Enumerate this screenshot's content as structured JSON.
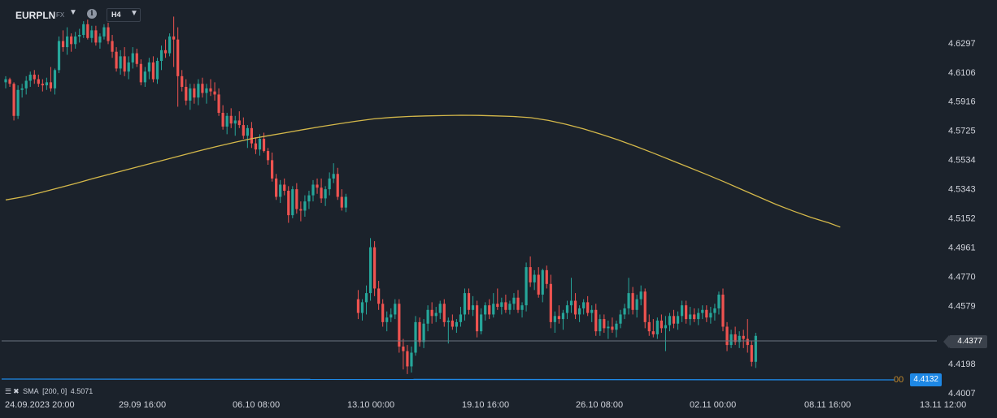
{
  "toolbar": {
    "symbol": "EURPLN",
    "market": "FX",
    "timeframe": "H4",
    "info_icon": "info-icon",
    "dropdown_icon": "chevron-down-icon"
  },
  "colors": {
    "background": "#1b222b",
    "up": "#26a69a",
    "down": "#ef5350",
    "sma": "#d4b84a",
    "current_line": "#6b7480",
    "sma_level_line": "#1e88e5",
    "axis_text": "#d1d4dc"
  },
  "legend": {
    "sma_label": "SMA",
    "sma_params": "[200, 0]",
    "sma_value": "4.5071"
  },
  "tags": {
    "last_price": "4.4377",
    "sma_level": "4.4132",
    "sma_prefix": "00"
  },
  "chart_data": {
    "type": "candlestick",
    "symbol": "EURPLN",
    "timeframe": "H4",
    "y_axis": {
      "ticks": [
        "4.6297",
        "4.6106",
        "4.5916",
        "4.5725",
        "4.5534",
        "4.5343",
        "4.5152",
        "4.4961",
        "4.4770",
        "4.4579",
        "4.4377",
        "4.4198",
        "4.4007"
      ],
      "range": [
        4.3995,
        4.651
      ]
    },
    "x_axis": {
      "ticks": [
        "24.09.2023 20:00",
        "29.09 16:00",
        "06.10 08:00",
        "13.10 00:00",
        "19.10 16:00",
        "26.10 08:00",
        "02.11 00:00",
        "08.11 16:00",
        "13.11 12:00"
      ]
    },
    "last_price": 4.4377,
    "sma_period": 200,
    "sma_value": 4.5071,
    "ohlc": [
      [
        4.604,
        4.608,
        4.6,
        4.606
      ],
      [
        4.606,
        4.607,
        4.601,
        4.603
      ],
      [
        4.603,
        4.604,
        4.579,
        4.582
      ],
      [
        4.582,
        4.602,
        4.58,
        4.599
      ],
      [
        4.599,
        4.603,
        4.594,
        4.6
      ],
      [
        4.6,
        4.608,
        4.596,
        4.605
      ],
      [
        4.605,
        4.611,
        4.601,
        4.609
      ],
      [
        4.609,
        4.612,
        4.603,
        4.606
      ],
      [
        4.606,
        4.609,
        4.601,
        4.603
      ],
      [
        4.603,
        4.606,
        4.598,
        4.602
      ],
      [
        4.602,
        4.607,
        4.599,
        4.604
      ],
      [
        4.604,
        4.614,
        4.598,
        4.6
      ],
      [
        4.6,
        4.613,
        4.596,
        4.612
      ],
      [
        4.612,
        4.634,
        4.61,
        4.631
      ],
      [
        4.631,
        4.638,
        4.624,
        4.627
      ],
      [
        4.627,
        4.64,
        4.622,
        4.634
      ],
      [
        4.634,
        4.636,
        4.624,
        4.629
      ],
      [
        4.629,
        4.637,
        4.626,
        4.634
      ],
      [
        4.634,
        4.639,
        4.63,
        4.635
      ],
      [
        4.635,
        4.644,
        4.633,
        4.642
      ],
      [
        4.642,
        4.645,
        4.632,
        4.633
      ],
      [
        4.633,
        4.641,
        4.63,
        4.638
      ],
      [
        4.638,
        4.641,
        4.628,
        4.63
      ],
      [
        4.63,
        4.636,
        4.626,
        4.634
      ],
      [
        4.634,
        4.642,
        4.632,
        4.64
      ],
      [
        4.64,
        4.643,
        4.629,
        4.631
      ],
      [
        4.631,
        4.635,
        4.62,
        4.624
      ],
      [
        4.624,
        4.627,
        4.611,
        4.613
      ],
      [
        4.613,
        4.625,
        4.609,
        4.621
      ],
      [
        4.621,
        4.627,
        4.608,
        4.611
      ],
      [
        4.611,
        4.621,
        4.606,
        4.617
      ],
      [
        4.617,
        4.627,
        4.613,
        4.623
      ],
      [
        4.623,
        4.626,
        4.614,
        4.616
      ],
      [
        4.616,
        4.619,
        4.602,
        4.604
      ],
      [
        4.604,
        4.614,
        4.601,
        4.611
      ],
      [
        4.611,
        4.62,
        4.606,
        4.617
      ],
      [
        4.617,
        4.621,
        4.604,
        4.606
      ],
      [
        4.606,
        4.62,
        4.603,
        4.618
      ],
      [
        4.618,
        4.628,
        4.612,
        4.625
      ],
      [
        4.625,
        4.632,
        4.62,
        4.623
      ],
      [
        4.623,
        4.636,
        4.621,
        4.634
      ],
      [
        4.634,
        4.647,
        4.614,
        4.632
      ],
      [
        4.632,
        4.64,
        4.588,
        4.608
      ],
      [
        4.608,
        4.612,
        4.598,
        4.601
      ],
      [
        4.601,
        4.606,
        4.589,
        4.592
      ],
      [
        4.592,
        4.603,
        4.586,
        4.6
      ],
      [
        4.6,
        4.603,
        4.59,
        4.594
      ],
      [
        4.594,
        4.606,
        4.589,
        4.603
      ],
      [
        4.603,
        4.607,
        4.594,
        4.597
      ],
      [
        4.597,
        4.603,
        4.59,
        4.6
      ],
      [
        4.6,
        4.606,
        4.595,
        4.598
      ],
      [
        4.598,
        4.604,
        4.592,
        4.596
      ],
      [
        4.596,
        4.6,
        4.582,
        4.584
      ],
      [
        4.584,
        4.589,
        4.573,
        4.575
      ],
      [
        4.575,
        4.584,
        4.57,
        4.582
      ],
      [
        4.582,
        4.587,
        4.574,
        4.577
      ],
      [
        4.577,
        4.582,
        4.569,
        4.579
      ],
      [
        4.579,
        4.585,
        4.574,
        4.576
      ],
      [
        4.576,
        4.581,
        4.567,
        4.569
      ],
      [
        4.569,
        4.576,
        4.561,
        4.574
      ],
      [
        4.574,
        4.578,
        4.561,
        4.564
      ],
      [
        4.564,
        4.568,
        4.557,
        4.56
      ],
      [
        4.56,
        4.57,
        4.556,
        4.567
      ],
      [
        4.567,
        4.571,
        4.558,
        4.559
      ],
      [
        4.559,
        4.561,
        4.55,
        4.553
      ],
      [
        4.553,
        4.558,
        4.539,
        4.541
      ],
      [
        4.541,
        4.544,
        4.527,
        4.529
      ],
      [
        4.529,
        4.54,
        4.525,
        4.537
      ],
      [
        4.537,
        4.541,
        4.53,
        4.533
      ],
      [
        4.533,
        4.536,
        4.512,
        4.517
      ],
      [
        4.517,
        4.536,
        4.515,
        4.534
      ],
      [
        4.534,
        4.538,
        4.518,
        4.521
      ],
      [
        4.521,
        4.526,
        4.513,
        4.52
      ],
      [
        4.52,
        4.53,
        4.516,
        4.526
      ],
      [
        4.526,
        4.533,
        4.521,
        4.53
      ],
      [
        4.53,
        4.54,
        4.526,
        4.537
      ],
      [
        4.537,
        4.541,
        4.531,
        4.535
      ],
      [
        4.535,
        4.541,
        4.525,
        4.528
      ],
      [
        4.528,
        4.536,
        4.523,
        4.534
      ],
      [
        4.534,
        4.545,
        4.53,
        4.541
      ],
      [
        4.541,
        4.551,
        4.538,
        4.544
      ],
      [
        4.544,
        4.548,
        4.527,
        4.529
      ],
      [
        4.529,
        4.534,
        4.52,
        4.522
      ],
      [
        4.522,
        4.531,
        4.519,
        4.529
      ],
      null,
      null,
      [
        4.462,
        4.468,
        4.449,
        4.453
      ],
      [
        4.453,
        4.462,
        4.448,
        4.46
      ],
      [
        4.46,
        4.471,
        4.452,
        4.466
      ],
      [
        4.466,
        4.502,
        4.461,
        4.496
      ],
      [
        4.496,
        4.5,
        4.464,
        4.469
      ],
      [
        4.469,
        4.474,
        4.455,
        4.459
      ],
      [
        4.459,
        4.462,
        4.444,
        4.447
      ],
      [
        4.447,
        4.454,
        4.441,
        4.45
      ],
      [
        4.45,
        4.456,
        4.447,
        4.452
      ],
      [
        4.452,
        4.462,
        4.449,
        4.459
      ],
      [
        4.459,
        4.462,
        4.427,
        4.431
      ],
      [
        4.431,
        4.436,
        4.416,
        4.428
      ],
      [
        4.428,
        4.432,
        4.413,
        4.418
      ],
      [
        4.418,
        4.431,
        4.414,
        4.427
      ],
      [
        4.427,
        4.451,
        4.425,
        4.447
      ],
      [
        4.447,
        4.45,
        4.431,
        4.434
      ],
      [
        4.434,
        4.449,
        4.43,
        4.446
      ],
      [
        4.446,
        4.458,
        4.441,
        4.455
      ],
      [
        4.455,
        4.46,
        4.446,
        4.451
      ],
      [
        4.451,
        4.457,
        4.447,
        4.453
      ],
      [
        4.453,
        4.461,
        4.449,
        4.459
      ],
      [
        4.459,
        4.462,
        4.444,
        4.447
      ],
      [
        4.447,
        4.45,
        4.433,
        4.448
      ],
      [
        4.448,
        4.452,
        4.442,
        4.444
      ],
      [
        4.444,
        4.449,
        4.44,
        4.447
      ],
      [
        4.447,
        4.457,
        4.444,
        4.452
      ],
      [
        4.452,
        4.469,
        4.448,
        4.466
      ],
      [
        4.466,
        4.469,
        4.452,
        4.455
      ],
      [
        4.455,
        4.464,
        4.451,
        4.458
      ],
      [
        4.458,
        4.461,
        4.437,
        4.441
      ],
      [
        4.441,
        4.456,
        4.439,
        4.452
      ],
      [
        4.452,
        4.46,
        4.448,
        4.458
      ],
      [
        4.458,
        4.462,
        4.449,
        4.452
      ],
      [
        4.452,
        4.466,
        4.45,
        4.459
      ],
      [
        4.459,
        4.469,
        4.455,
        4.457
      ],
      [
        4.457,
        4.463,
        4.452,
        4.46
      ],
      [
        4.46,
        4.465,
        4.453,
        4.455
      ],
      [
        4.455,
        4.461,
        4.452,
        4.459
      ],
      [
        4.459,
        4.466,
        4.455,
        4.463
      ],
      [
        4.463,
        4.468,
        4.453,
        4.455
      ],
      [
        4.455,
        4.46,
        4.45,
        4.458
      ],
      [
        4.458,
        4.486,
        4.454,
        4.483
      ],
      [
        4.483,
        4.49,
        4.47,
        4.473
      ],
      [
        4.473,
        4.481,
        4.468,
        4.478
      ],
      [
        4.478,
        4.483,
        4.463,
        4.465
      ],
      [
        4.465,
        4.482,
        4.46,
        4.481
      ],
      [
        4.481,
        4.484,
        4.469,
        4.472
      ],
      [
        4.472,
        4.478,
        4.443,
        4.447
      ],
      [
        4.447,
        4.454,
        4.44,
        4.451
      ],
      [
        4.451,
        4.458,
        4.446,
        4.449
      ],
      [
        4.449,
        4.455,
        4.442,
        4.453
      ],
      [
        4.453,
        4.461,
        4.449,
        4.458
      ],
      [
        4.458,
        4.476,
        4.453,
        4.461
      ],
      [
        4.461,
        4.466,
        4.449,
        4.452
      ],
      [
        4.452,
        4.458,
        4.447,
        4.456
      ],
      [
        4.456,
        4.462,
        4.452,
        4.46
      ],
      [
        4.46,
        4.464,
        4.451,
        4.453
      ],
      [
        4.453,
        4.458,
        4.447,
        4.455
      ],
      [
        4.455,
        4.459,
        4.438,
        4.441
      ],
      [
        4.441,
        4.452,
        4.438,
        4.449
      ],
      [
        4.449,
        4.452,
        4.44,
        4.443
      ],
      [
        4.443,
        4.448,
        4.436,
        4.444
      ],
      [
        4.444,
        4.45,
        4.44,
        4.442
      ],
      [
        4.442,
        4.448,
        4.437,
        4.446
      ],
      [
        4.446,
        4.455,
        4.443,
        4.452
      ],
      [
        4.452,
        4.459,
        4.449,
        4.456
      ],
      [
        4.456,
        4.476,
        4.452,
        4.466
      ],
      [
        4.466,
        4.47,
        4.452,
        4.455
      ],
      [
        4.455,
        4.465,
        4.45,
        4.462
      ],
      [
        4.462,
        4.471,
        4.458,
        4.467
      ],
      [
        4.467,
        4.469,
        4.443,
        4.447
      ],
      [
        4.447,
        4.452,
        4.438,
        4.441
      ],
      [
        4.441,
        4.449,
        4.437,
        4.439
      ],
      [
        4.439,
        4.45,
        4.436,
        4.448
      ],
      [
        4.448,
        4.452,
        4.44,
        4.443
      ],
      [
        4.443,
        4.451,
        4.428,
        4.445
      ],
      [
        4.445,
        4.453,
        4.441,
        4.451
      ],
      [
        4.451,
        4.455,
        4.443,
        4.446
      ],
      [
        4.446,
        4.454,
        4.442,
        4.451
      ],
      [
        4.451,
        4.461,
        4.447,
        4.458
      ],
      [
        4.458,
        4.461,
        4.446,
        4.449
      ],
      [
        4.449,
        4.457,
        4.445,
        4.452
      ],
      [
        4.452,
        4.456,
        4.447,
        4.449
      ],
      [
        4.449,
        4.456,
        4.445,
        4.453
      ],
      [
        4.453,
        4.458,
        4.449,
        4.455
      ],
      [
        4.455,
        4.458,
        4.447,
        4.45
      ],
      [
        4.45,
        4.457,
        4.446,
        4.453
      ],
      [
        4.453,
        4.459,
        4.448,
        4.456
      ],
      [
        4.456,
        4.467,
        4.452,
        4.465
      ],
      [
        4.465,
        4.469,
        4.441,
        4.444
      ],
      [
        4.444,
        4.447,
        4.428,
        4.432
      ],
      [
        4.432,
        4.442,
        4.43,
        4.439
      ],
      [
        4.439,
        4.444,
        4.432,
        4.434
      ],
      [
        4.434,
        4.441,
        4.43,
        4.438
      ],
      [
        4.438,
        4.442,
        4.43,
        4.436
      ],
      [
        4.436,
        4.449,
        4.427,
        4.432
      ],
      [
        4.432,
        4.435,
        4.418,
        4.421
      ],
      [
        4.421,
        4.44,
        4.417,
        4.438
      ]
    ],
    "sma_line": [
      [
        0,
        4.527
      ],
      [
        6,
        4.529
      ],
      [
        12,
        4.5318
      ],
      [
        18,
        4.5348
      ],
      [
        24,
        4.5378
      ],
      [
        30,
        4.541
      ],
      [
        36,
        4.544
      ],
      [
        42,
        4.547
      ],
      [
        48,
        4.55
      ],
      [
        54,
        4.553
      ],
      [
        60,
        4.556
      ],
      [
        66,
        4.559
      ],
      [
        72,
        4.5618
      ],
      [
        78,
        4.5645
      ],
      [
        84,
        4.567
      ],
      [
        90,
        4.569
      ],
      [
        96,
        4.571
      ],
      [
        102,
        4.573
      ],
      [
        108,
        4.575
      ],
      [
        114,
        4.5768
      ],
      [
        120,
        4.5785
      ],
      [
        126,
        4.58
      ],
      [
        132,
        4.581
      ],
      [
        138,
        4.5816
      ],
      [
        144,
        4.582
      ],
      [
        150,
        4.5822
      ],
      [
        156,
        4.5824
      ],
      [
        162,
        4.5823
      ],
      [
        168,
        4.582
      ],
      [
        174,
        4.5816
      ],
      [
        180,
        4.5808
      ],
      [
        186,
        4.579
      ],
      [
        192,
        4.5765
      ],
      [
        198,
        4.5735
      ],
      [
        204,
        4.57
      ],
      [
        210,
        4.5662
      ],
      [
        216,
        4.562
      ],
      [
        222,
        4.5576
      ],
      [
        228,
        4.553
      ],
      [
        234,
        4.5484
      ],
      [
        240,
        4.5438
      ],
      [
        246,
        4.539
      ],
      [
        252,
        4.534
      ],
      [
        258,
        4.529
      ],
      [
        264,
        4.524
      ],
      [
        270,
        4.5196
      ],
      [
        276,
        4.5155
      ],
      [
        282,
        4.512
      ],
      [
        286,
        4.5092
      ]
    ]
  }
}
